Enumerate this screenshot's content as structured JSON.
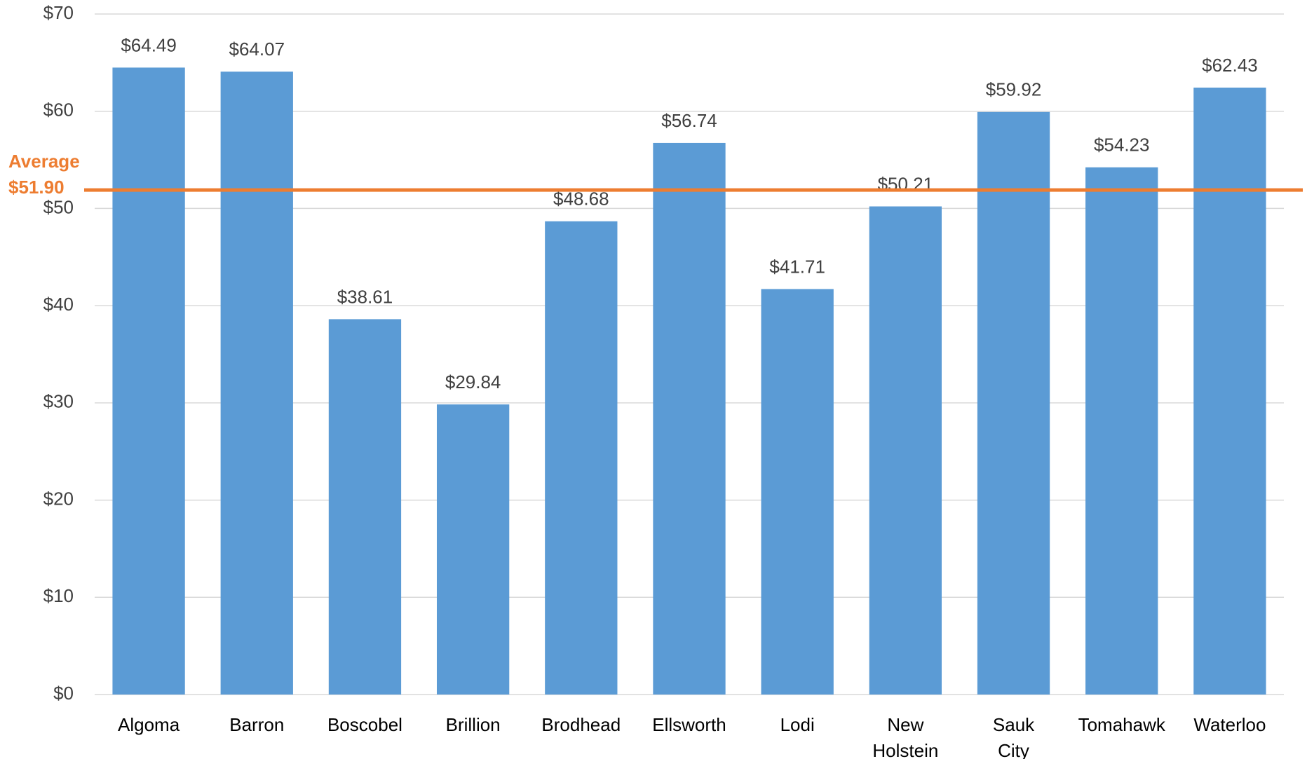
{
  "chart_data": {
    "type": "bar",
    "categories": [
      "Algoma",
      "Barron",
      "Boscobel",
      "Brillion",
      "Brodhead",
      "Ellsworth",
      "Lodi",
      "New Holstein",
      "Sauk City",
      "Tomahawk",
      "Waterloo"
    ],
    "values": [
      64.49,
      64.07,
      38.61,
      29.84,
      48.68,
      56.74,
      41.71,
      50.21,
      59.92,
      54.23,
      62.43
    ],
    "value_labels": [
      "$64.49",
      "$64.07",
      "$38.61",
      "$29.84",
      "$48.68",
      "$56.74",
      "$41.71",
      "$50.21",
      "$59.92",
      "$54.23",
      "$62.43"
    ],
    "color": "#5b9bd5",
    "ylim": [
      0,
      70
    ],
    "yticks": [
      {
        "value": 0,
        "label": "$0"
      },
      {
        "value": 10,
        "label": "$10"
      },
      {
        "value": 20,
        "label": "$20"
      },
      {
        "value": 30,
        "label": "$30"
      },
      {
        "value": 40,
        "label": "$40"
      },
      {
        "value": 50,
        "label": "$50"
      },
      {
        "value": 60,
        "label": "$60"
      },
      {
        "value": 70,
        "label": "$70"
      }
    ],
    "grid": true,
    "average": {
      "label": "Average",
      "value": 51.9,
      "value_label": "$51.90",
      "color": "#ed7d31"
    }
  }
}
